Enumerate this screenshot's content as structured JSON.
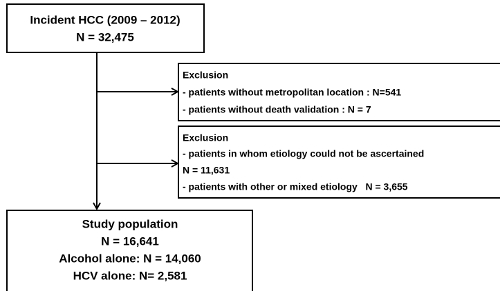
{
  "nodes": [
    {
      "lines": [
        "Incident HCC (2009 – 2012)",
        "N = 32,475"
      ]
    },
    {
      "lines": [
        "Exclusion",
        "- patients without metropolitan location : N=541",
        "- patients without death validation : N = 7"
      ]
    },
    {
      "lines": [
        "Exclusion",
        "- patients in whom etiology could not be ascertained",
        "N = 11,631",
        "- patients with other or mixed etiology   N = 3,655"
      ]
    },
    {
      "lines": [
        "Study population",
        "N = 16,641",
        "Alcohol alone: N = 14,060",
        "HCV alone: N= 2,581"
      ]
    }
  ]
}
